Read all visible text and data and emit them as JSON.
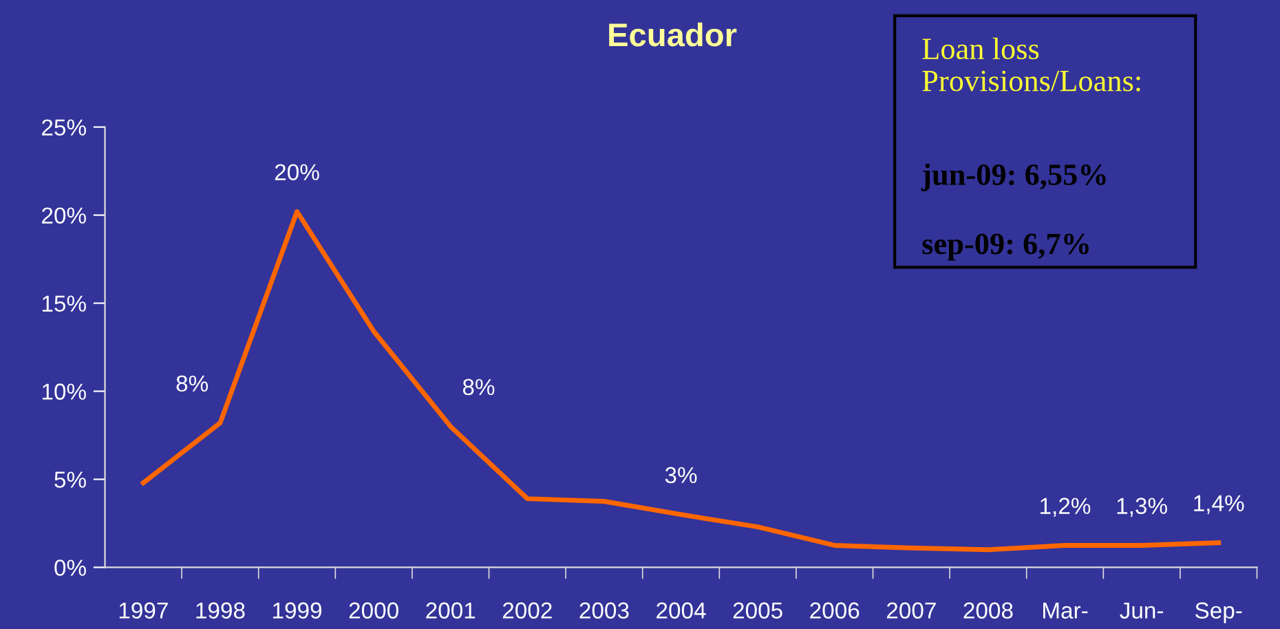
{
  "chart_data": {
    "type": "line",
    "title": "Ecuador",
    "categories": [
      "1997",
      "1998",
      "1999",
      "2000",
      "2001",
      "2002",
      "2003",
      "2004",
      "2005",
      "2006",
      "2007",
      "2008",
      "Mar-",
      "Jun-",
      "Sep-"
    ],
    "series": [
      {
        "color": "#ff6600",
        "values": [
          4.8,
          8.2,
          20.2,
          13.4,
          8.0,
          3.9,
          3.75,
          3.0,
          2.3,
          1.25,
          1.1,
          1.0,
          1.25,
          1.25,
          1.4
        ],
        "value_labels": [
          null,
          "8%",
          "20%",
          null,
          "8%",
          null,
          null,
          "3%",
          null,
          null,
          null,
          null,
          "1,2%",
          "1,3%",
          "1,4%"
        ]
      }
    ],
    "ylim": [
      0,
      25
    ],
    "yticks": [
      {
        "value": 0,
        "label": "0%"
      },
      {
        "value": 5,
        "label": "5%"
      },
      {
        "value": 10,
        "label": "10%"
      },
      {
        "value": 15,
        "label": "15%"
      },
      {
        "value": 20,
        "label": "20%"
      },
      {
        "value": 25,
        "label": "25%"
      }
    ],
    "grid": false,
    "marker": "none",
    "line_style": "solid",
    "annotations": [
      "Loan loss\nProvisions/Loans:",
      "jun-09: 6,55%",
      "sep-09: 6,7%"
    ]
  }
}
